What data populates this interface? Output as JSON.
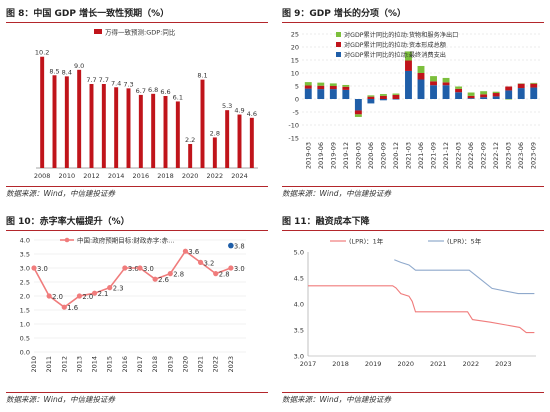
{
  "panels": {
    "p8": {
      "title": "图 8：中国 GDP 增长一致性预期（%）",
      "source": "数据来源：Wind，中信建投证券"
    },
    "p9": {
      "title": "图 9：GDP 增长的分项（%）",
      "source": "数据来源：Wind，中信建投证券"
    },
    "p10": {
      "title": "图 10：赤字率大幅提升（%）",
      "source": "数据来源：Wind，中信建投证券"
    },
    "p11": {
      "title": "图 11：融资成本下降",
      "source": "数据来源：Wind，中信建投证券"
    }
  },
  "colors": {
    "red": "#c0141b",
    "blue": "#1f5ea8",
    "green": "#7cbf3c",
    "salmon": "#f07c7c",
    "lightblue": "#8fa9cc",
    "rule": "#b3262b"
  },
  "chart_data": [
    {
      "id": "p8",
      "type": "bar",
      "legend": [
        "万得一致预测:GDP:同比"
      ],
      "legend_position": "top-center",
      "x": [
        2008,
        2009,
        2010,
        2011,
        2012,
        2013,
        2014,
        2015,
        2016,
        2017,
        2018,
        2019,
        2020,
        2021,
        2022,
        2023,
        2024,
        2025
      ],
      "values": [
        10.2,
        8.5,
        8.4,
        9.0,
        7.7,
        7.7,
        7.4,
        7.3,
        6.7,
        6.8,
        6.6,
        6.1,
        2.2,
        8.1,
        2.8,
        5.3,
        4.9,
        4.6
      ],
      "labels": [
        "10.2",
        "8.5",
        "8.4",
        "9.0",
        "7.7",
        "7.7",
        "7.4",
        "7.3",
        "6.7",
        "6.8",
        "6.6",
        "6.1",
        "2.2",
        "8.1",
        "2.8",
        "5.3",
        "4.9",
        "4.6"
      ],
      "xticks": [
        "2008",
        "2010",
        "2012",
        "2014",
        "2016",
        "2018",
        "2020",
        "2022",
        "2024"
      ],
      "ylim": [
        0,
        11
      ]
    },
    {
      "id": "p9",
      "type": "bar",
      "stacked": true,
      "x": [
        "2019-03",
        "2019-06",
        "2019-09",
        "2019-12",
        "2020-03",
        "2020-06",
        "2020-09",
        "2020-12",
        "2021-03",
        "2021-06",
        "2021-09",
        "2021-12",
        "2022-03",
        "2022-06",
        "2022-09",
        "2022-12",
        "2023-03",
        "2023-06",
        "2023-09"
      ],
      "yticks": [
        -15,
        -10,
        -5,
        0,
        5,
        10,
        15,
        20,
        25
      ],
      "ylim": [
        -15,
        25
      ],
      "grid": true,
      "legend_position": "top-left",
      "series": [
        {
          "name": "对GDP累计同比的拉动:货物和服务净出口",
          "color": "#7cbf3c",
          "values": [
            1.3,
            1.2,
            1.0,
            0.7,
            -1.0,
            0.5,
            0.7,
            0.5,
            3.5,
            2.7,
            2.0,
            1.7,
            0.9,
            1.3,
            1.2,
            0.5,
            -0.2,
            0.1,
            0.3
          ]
        },
        {
          "name": "对GDP累计同比的拉动:资本形成总额",
          "color": "#c0141b",
          "values": [
            1.2,
            1.3,
            1.2,
            1.2,
            -1.5,
            0.9,
            1.2,
            1.6,
            4.0,
            2.5,
            1.5,
            1.1,
            1.3,
            0.9,
            1.1,
            1.3,
            1.5,
            1.7,
            1.5
          ]
        },
        {
          "name": "对GDP累计同比的拉动:最终消费支出",
          "color": "#1f5ea8",
          "values": [
            4.0,
            3.8,
            3.8,
            3.5,
            -4.4,
            -1.7,
            -0.5,
            -0.2,
            10.8,
            7.5,
            5.3,
            5.3,
            2.6,
            0.3,
            0.7,
            1.0,
            3.3,
            4.2,
            4.4
          ]
        }
      ]
    },
    {
      "id": "p10",
      "type": "line",
      "legend": [
        "中国:政府预期目标:财政赤字:赤…"
      ],
      "legend_position": "top-left",
      "x": [
        "2010",
        "2011",
        "2012",
        "2013",
        "2014",
        "2015",
        "2016",
        "2017",
        "2018",
        "2019",
        "2020",
        "2021",
        "2022",
        "2023",
        "2024"
      ],
      "values": [
        3.0,
        2.0,
        1.6,
        2.0,
        2.1,
        2.3,
        3.0,
        3.0,
        2.6,
        2.8,
        3.6,
        3.2,
        2.8,
        3.0,
        null
      ],
      "labels": [
        "3.0",
        "2.0",
        "1.6",
        "2.0",
        "2.1",
        "2.3",
        "3.0",
        "3.0",
        "2.6",
        "2.8",
        "3.6",
        "3.2",
        "2.8",
        "3.0",
        ""
      ],
      "highlight": {
        "x": "2023",
        "value": 3.8,
        "label": "3.8"
      },
      "xticks": [
        "2010",
        "2011",
        "2012",
        "2013",
        "2014",
        "2015",
        "2016",
        "2017",
        "2018",
        "2019",
        "2020",
        "2021",
        "2022",
        "2023"
      ],
      "yticks": [
        0.0,
        0.5,
        1.0,
        1.5,
        2.0,
        2.5,
        3.0,
        3.5,
        4.0
      ],
      "ylim": [
        0,
        4
      ],
      "grid": true
    },
    {
      "id": "p11",
      "type": "line",
      "legend_position": "top-center",
      "xticks": [
        "2017",
        "2018",
        "2019",
        "2020",
        "2021",
        "2022",
        "2023"
      ],
      "xlim": [
        2017,
        2024
      ],
      "yticks": [
        3.0,
        3.5,
        4.0,
        4.5,
        5.0
      ],
      "ylim": [
        3.0,
        5.0
      ],
      "series": [
        {
          "name": "(LPR)：1年",
          "color": "#f07c7c",
          "points": [
            [
              2017.0,
              4.35
            ],
            [
              2019.6,
              4.35
            ],
            [
              2019.7,
              4.31
            ],
            [
              2019.85,
              4.2
            ],
            [
              2020.1,
              4.15
            ],
            [
              2020.2,
              4.05
            ],
            [
              2020.3,
              3.85
            ],
            [
              2021.9,
              3.85
            ],
            [
              2021.95,
              3.8
            ],
            [
              2022.05,
              3.7
            ],
            [
              2022.6,
              3.65
            ],
            [
              2023.5,
              3.55
            ],
            [
              2023.7,
              3.45
            ],
            [
              2023.95,
              3.45
            ]
          ]
        },
        {
          "name": "(LPR)：5年",
          "color": "#8fa9cc",
          "points": [
            [
              2019.65,
              4.85
            ],
            [
              2019.85,
              4.8
            ],
            [
              2020.1,
              4.75
            ],
            [
              2020.3,
              4.65
            ],
            [
              2021.95,
              4.65
            ],
            [
              2022.05,
              4.6
            ],
            [
              2022.35,
              4.45
            ],
            [
              2022.65,
              4.3
            ],
            [
              2023.45,
              4.2
            ],
            [
              2023.95,
              4.2
            ]
          ]
        }
      ]
    }
  ]
}
